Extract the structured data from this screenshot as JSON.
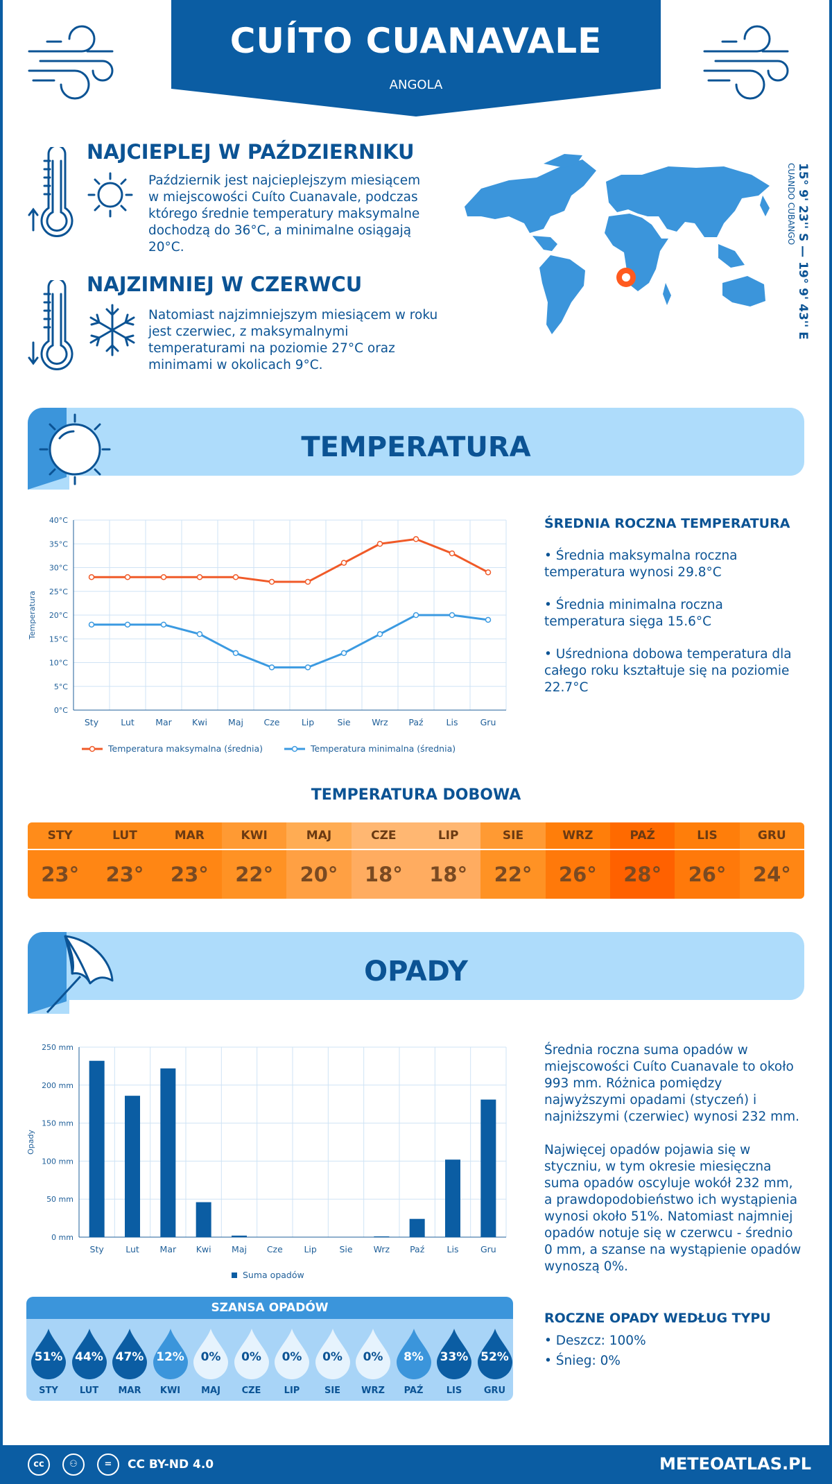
{
  "header": {
    "city": "CUÍTO CUANAVALE",
    "country": "ANGOLA"
  },
  "warmest": {
    "title": "NAJCIEPLEJ W PAŹDZIERNIKU",
    "text": "Październik jest najcieplejszym miesiącem w miejscowości Cuíto Cuanavale, podczas którego średnie temperatury maksymalne dochodzą do 36°C, a minimalne osiągają 20°C."
  },
  "coldest": {
    "title": "NAJZIMNIEJ W CZERWCU",
    "text": "Natomiast najzimniejszym miesiącem w roku jest czerwiec, z maksymalnymi temperaturami na poziomie 27°C oraz minimami w okolicach 9°C."
  },
  "coords": {
    "value": "15° 9' 23'' S — 19° 9' 43'' E",
    "region": "CUANDO CUBANGO"
  },
  "temp_section": {
    "title": "TEMPERATURA",
    "side_title": "ŚREDNIA ROCZNA TEMPERATURA",
    "bullet1": "• Średnia maksymalna roczna temperatura wynosi 29.8°C",
    "bullet2": "• Średnia minimalna roczna temperatura sięga 15.6°C",
    "bullet3": "• Uśredniona dobowa temperatura dla całego roku kształtuje się na poziomie 22.7°C"
  },
  "daily": {
    "title": "TEMPERATURA DOBOWA",
    "months": [
      "STY",
      "LUT",
      "MAR",
      "KWI",
      "MAJ",
      "CZE",
      "LIP",
      "SIE",
      "WRZ",
      "PAŹ",
      "LIS",
      "GRU"
    ],
    "values": [
      "23°",
      "23°",
      "23°",
      "22°",
      "20°",
      "18°",
      "18°",
      "22°",
      "26°",
      "28°",
      "26°",
      "24°"
    ],
    "colors_top": [
      "#ff8c1a",
      "#ff8c1a",
      "#ff8c1a",
      "#ff9a33",
      "#ffac53",
      "#ffb772",
      "#ffb772",
      "#ff9a33",
      "#ff7e0a",
      "#ff6a00",
      "#ff7e0a",
      "#ff8c1a"
    ],
    "colors_bottom": [
      "#ff8614",
      "#ff8614",
      "#ff8614",
      "#ff9224",
      "#ffa043",
      "#ffac60",
      "#ffac60",
      "#ff9224",
      "#ff790a",
      "#ff6100",
      "#ff790a",
      "#ff8614"
    ]
  },
  "precip_section": {
    "title": "OPADY",
    "p1": "Średnia roczna suma opadów w miejscowości Cuíto Cuanavale to około 993 mm. Różnica pomiędzy najwyższymi opadami (styczeń) i najniższymi (czerwiec) wynosi 232 mm.",
    "p2": "Najwięcej opadów pojawia się w styczniu, w tym okresie miesięczna suma opadów oscyluje wokół 232 mm, a prawdopodobieństwo ich wystąpienia wynosi około 51%. Natomiast najmniej opadów notuje się w czerwcu - średnio 0 mm, a szanse na wystąpienie opadów wynoszą 0%.",
    "type_title": "ROCZNE OPADY WEDŁUG TYPU",
    "rain": "• Deszcz: 100%",
    "snow": "• Śnieg: 0%"
  },
  "chance": {
    "title": "SZANSA OPADÓW",
    "months": [
      "STY",
      "LUT",
      "MAR",
      "KWI",
      "MAJ",
      "CZE",
      "LIP",
      "SIE",
      "WRZ",
      "PAŹ",
      "LIS",
      "GRU"
    ],
    "values": [
      "51%",
      "44%",
      "47%",
      "12%",
      "0%",
      "0%",
      "0%",
      "0%",
      "0%",
      "8%",
      "33%",
      "52%"
    ],
    "colors": [
      "#0b5da3",
      "#0b5da3",
      "#0b5da3",
      "#3b95db",
      "#e6f3fd",
      "#e6f3fd",
      "#e6f3fd",
      "#e6f3fd",
      "#e6f3fd",
      "#3b95db",
      "#0b5da3",
      "#0b5da3"
    ],
    "text_colors": [
      "#ffffff",
      "#ffffff",
      "#ffffff",
      "#ffffff",
      "#0b5394",
      "#0b5394",
      "#0b5394",
      "#0b5394",
      "#0b5394",
      "#ffffff",
      "#ffffff",
      "#ffffff"
    ]
  },
  "footer": {
    "license": "CC BY-ND 4.0",
    "site": "METEOATLAS.PL"
  },
  "chart_data": [
    {
      "type": "line",
      "categories": [
        "Sty",
        "Lut",
        "Mar",
        "Kwi",
        "Maj",
        "Cze",
        "Lip",
        "Sie",
        "Wrz",
        "Paź",
        "Lis",
        "Gru"
      ],
      "series": [
        {
          "name": "Temperatura maksymalna (średnia)",
          "values": [
            28,
            28,
            28,
            28,
            28,
            27,
            27,
            31,
            35,
            36,
            33,
            29
          ],
          "color": "#f05a28"
        },
        {
          "name": "Temperatura minimalna (średnia)",
          "values": [
            18,
            18,
            18,
            16,
            12,
            9,
            9,
            12,
            16,
            20,
            20,
            19
          ],
          "color": "#3b9ae1"
        }
      ],
      "ylabel": "Temperatura",
      "yticks": [
        "0°C",
        "5°C",
        "10°C",
        "15°C",
        "20°C",
        "25°C",
        "30°C",
        "35°C",
        "40°C"
      ],
      "ylim": [
        0,
        40
      ],
      "grid": true,
      "legend": "bottom"
    },
    {
      "type": "bar",
      "categories": [
        "Sty",
        "Lut",
        "Mar",
        "Kwi",
        "Maj",
        "Cze",
        "Lip",
        "Sie",
        "Wrz",
        "Paź",
        "Lis",
        "Gru"
      ],
      "series": [
        {
          "name": "Suma opadów",
          "values": [
            232,
            186,
            222,
            46,
            2,
            0,
            0,
            0,
            1,
            24,
            102,
            181
          ],
          "color": "#0b5da3"
        }
      ],
      "ylabel": "Opady",
      "yticks": [
        "0 mm",
        "50 mm",
        "100 mm",
        "150 mm",
        "200 mm",
        "250 mm"
      ],
      "ylim": [
        0,
        250
      ],
      "grid": true,
      "legend": "bottom"
    }
  ]
}
